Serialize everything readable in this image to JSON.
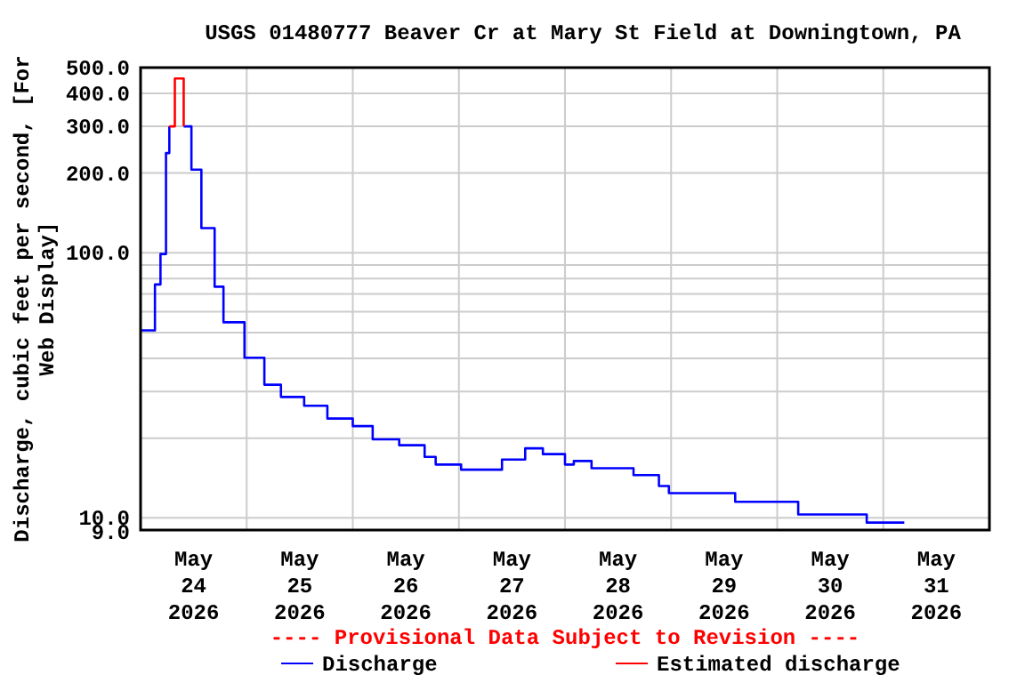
{
  "chart_data": {
    "type": "step",
    "title": "USGS 01480777 Beaver Cr at Mary St Field at Downingtown, PA",
    "ylabel": "Discharge, cubic feet per second, [For Web Display]",
    "annotations": [
      "---- Provisional Data Subject to Revision ----"
    ],
    "log": "y",
    "grid": true,
    "legend": "bottom",
    "marker": "none",
    "line_style": "solid",
    "xlim": [
      "2026-05-24T00:00",
      "2026-06-01T00:00"
    ],
    "xticks": [
      {
        "value": "2026-05-24T12:00",
        "label": "May\n24\n2026"
      },
      {
        "value": "2026-05-25T12:00",
        "label": "May\n25\n2026"
      },
      {
        "value": "2026-05-26T12:00",
        "label": "May\n26\n2026"
      },
      {
        "value": "2026-05-27T12:00",
        "label": "May\n27\n2026"
      },
      {
        "value": "2026-05-28T12:00",
        "label": "May\n28\n2026"
      },
      {
        "value": "2026-05-29T12:00",
        "label": "May\n29\n2026"
      },
      {
        "value": "2026-05-30T12:00",
        "label": "May\n30\n2026"
      },
      {
        "value": "2026-05-31T12:00",
        "label": "May\n31\n2026"
      },
      {
        "value": "2026-05-25T00:00",
        "label": null
      },
      {
        "value": "2026-05-26T00:00",
        "label": null
      },
      {
        "value": "2026-05-27T00:00",
        "label": null
      },
      {
        "value": "2026-05-28T00:00",
        "label": null
      },
      {
        "value": "2026-05-29T00:00",
        "label": null
      },
      {
        "value": "2026-05-30T00:00",
        "label": null
      },
      {
        "value": "2026-05-31T00:00",
        "label": null
      }
    ],
    "ylim": [
      9,
      500
    ],
    "yticks": [
      {
        "value": 9,
        "label": "9.0"
      },
      {
        "value": 10,
        "label": "10.0"
      },
      {
        "value": 20,
        "label": null
      },
      {
        "value": 30,
        "label": null
      },
      {
        "value": 40,
        "label": null
      },
      {
        "value": 50,
        "label": null
      },
      {
        "value": 60,
        "label": null
      },
      {
        "value": 70,
        "label": null
      },
      {
        "value": 80,
        "label": null
      },
      {
        "value": 90,
        "label": null
      },
      {
        "value": 100,
        "label": "100.0"
      },
      {
        "value": 200,
        "label": "200.0"
      },
      {
        "value": 300,
        "label": "300.0"
      },
      {
        "value": 400,
        "label": "400.0"
      },
      {
        "value": 500,
        "label": "500.0"
      }
    ],
    "series": [
      {
        "name": "Discharge",
        "color": "#0000ff",
        "x": [
          "2026-05-24T00:00",
          "2026-05-24T03:15",
          "2026-05-24T04:30",
          "2026-05-24T05:45",
          "2026-05-24T06:30",
          "2026-05-24T07:45",
          "2026-05-24T09:45",
          "2026-05-24T11:30",
          "2026-05-24T13:45",
          "2026-05-24T16:45",
          "2026-05-24T18:45",
          "2026-05-24T23:30",
          "2026-05-25T04:00",
          "2026-05-25T07:45",
          "2026-05-25T13:00",
          "2026-05-25T18:15",
          "2026-05-26T00:00",
          "2026-05-26T04:30",
          "2026-05-26T10:30",
          "2026-05-26T16:15",
          "2026-05-26T18:45",
          "2026-05-27T00:30",
          "2026-05-27T07:00",
          "2026-05-27T09:45",
          "2026-05-27T15:00",
          "2026-05-27T19:00",
          "2026-05-28T00:00",
          "2026-05-28T02:00",
          "2026-05-28T06:00",
          "2026-05-28T15:30",
          "2026-05-28T21:15",
          "2026-05-28T23:30",
          "2026-05-29T11:45",
          "2026-05-29T14:30",
          "2026-05-30T04:00",
          "2026-05-30T04:45",
          "2026-05-30T16:15",
          "2026-05-30T20:15",
          "2026-05-31T04:45"
        ],
        "values": [
          51,
          76,
          99,
          238,
          300,
          null,
          300,
          206,
          124,
          74.5,
          54.7,
          40.2,
          31.8,
          28.6,
          26.5,
          23.7,
          22.2,
          19.8,
          18.8,
          17,
          15.9,
          15.2,
          15.2,
          16.6,
          18.3,
          17.4,
          15.9,
          16.4,
          15.4,
          14.5,
          13.2,
          12.4,
          12.4,
          11.5,
          11.5,
          10.3,
          10.3,
          9.6,
          9.6
        ]
      },
      {
        "name": "Estimated discharge",
        "color": "#ff0000",
        "x": [
          "2026-05-24T06:30",
          "2026-05-24T07:45",
          "2026-05-24T09:45"
        ],
        "values": [
          300,
          455,
          300
        ]
      }
    ]
  }
}
